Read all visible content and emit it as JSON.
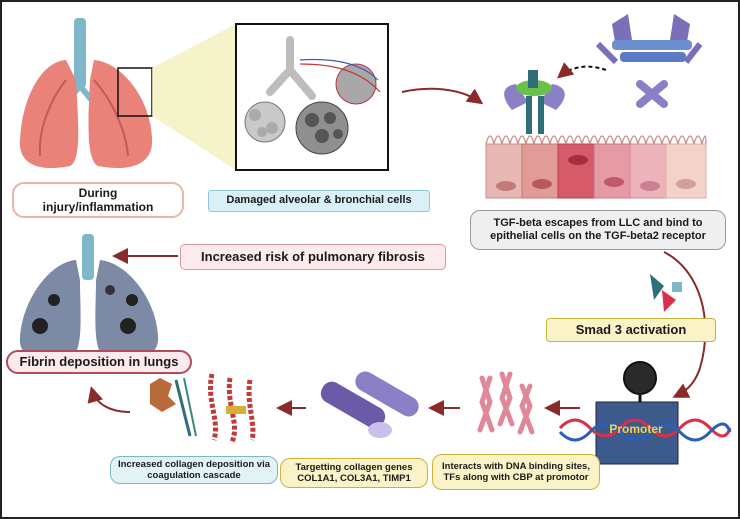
{
  "labels": {
    "injury": "During\ninjury/inflammation",
    "damaged": "Damaged alveolar & bronchial cells",
    "tgf": "TGF-beta escapes from LLC and bind to\nepithelial cells on the TGF-beta2 receptor",
    "risk": "Increased risk of pulmonary fibrosis",
    "smad": "Smad 3 activation",
    "fibrin": "Fibrin deposition in lungs",
    "collagen_deposition": "Increased collagen deposition via\ncoagulation cascade",
    "targeting": "Targetting collagen genes\nCOL1A1, COL3A1, TIMP1",
    "interacts": "Interacts with DNA binding sites,\nTFs along with CBP at promotor",
    "promoter": "Promoter"
  },
  "colors": {
    "arrow": "#8b2a2a",
    "lung_healthy": "#e9837a",
    "lung_fibrotic": "#7c8aa6",
    "trachea": "#7fb7c9",
    "epithelium": "#e8b9b4",
    "receptor": "#2f6f7a",
    "tgf_ligand": "#7a6fb8",
    "chromosome": "#e0879a",
    "promoter_box": "#3d5a8c",
    "dna_red": "#d8304a",
    "dna_blue": "#2b5fb8"
  },
  "icons": [
    "healthy-lung-icon",
    "alveoli-zoom-icon",
    "tgf-beta-receptor-icon",
    "latent-complex-icon",
    "epithelial-cells-icon",
    "smad3-icon",
    "promoter-dna-icon",
    "chromosomes-icon",
    "collagen-fibers-icon",
    "coagulation-icon",
    "fibrotic-lung-icon"
  ]
}
